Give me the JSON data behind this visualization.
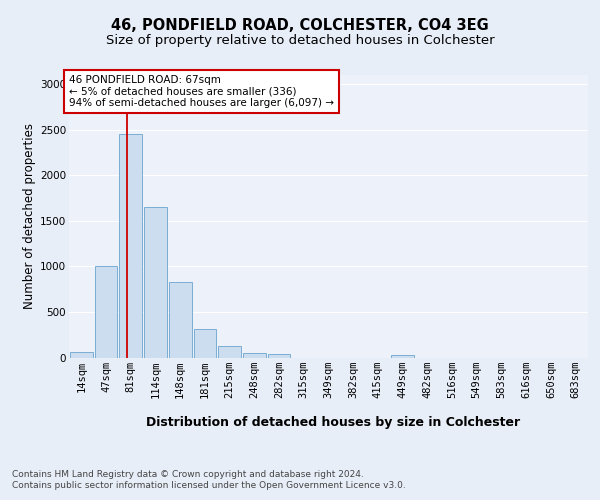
{
  "title1": "46, PONDFIELD ROAD, COLCHESTER, CO4 3EG",
  "title2": "Size of property relative to detached houses in Colchester",
  "xlabel": "Distribution of detached houses by size in Colchester",
  "ylabel": "Number of detached properties",
  "categories": [
    "14sqm",
    "47sqm",
    "81sqm",
    "114sqm",
    "148sqm",
    "181sqm",
    "215sqm",
    "248sqm",
    "282sqm",
    "315sqm",
    "349sqm",
    "382sqm",
    "415sqm",
    "449sqm",
    "482sqm",
    "516sqm",
    "549sqm",
    "583sqm",
    "616sqm",
    "650sqm",
    "683sqm"
  ],
  "values": [
    60,
    1000,
    2450,
    1650,
    830,
    310,
    130,
    50,
    40,
    0,
    0,
    0,
    0,
    30,
    0,
    0,
    0,
    0,
    0,
    0,
    0
  ],
  "bar_color": "#ccddf0",
  "bar_edge_color": "#7aadd4",
  "vline_x": 1.85,
  "vline_color": "#cc0000",
  "annotation_text": "46 PONDFIELD ROAD: 67sqm\n← 5% of detached houses are smaller (336)\n94% of semi-detached houses are larger (6,097) →",
  "annotation_box_facecolor": "#ffffff",
  "annotation_box_edgecolor": "#cc0000",
  "ylim": [
    0,
    3100
  ],
  "yticks": [
    0,
    500,
    1000,
    1500,
    2000,
    2500,
    3000
  ],
  "footer1": "Contains HM Land Registry data © Crown copyright and database right 2024.",
  "footer2": "Contains public sector information licensed under the Open Government Licence v3.0.",
  "bg_color": "#e8eef8",
  "plot_bg": "#edf2fa",
  "grid_color": "#ffffff",
  "title1_fontsize": 10.5,
  "title2_fontsize": 9.5,
  "ylabel_fontsize": 8.5,
  "xlabel_fontsize": 9,
  "tick_fontsize": 7.5,
  "annotation_fontsize": 7.5,
  "footer_fontsize": 6.5
}
